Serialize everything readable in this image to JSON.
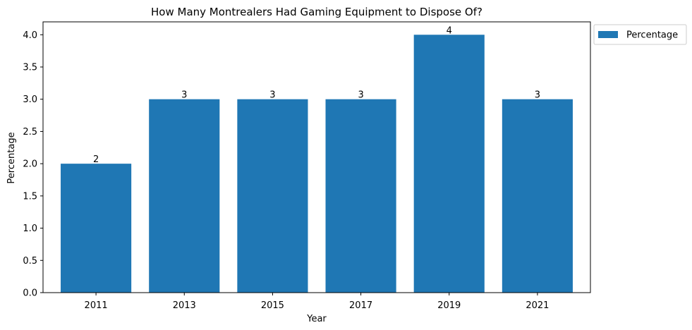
{
  "chart_data": {
    "type": "bar",
    "title": "How Many Montrealers Had Gaming Equipment to Dispose Of?",
    "xlabel": "Year",
    "ylabel": "Percentage",
    "categories": [
      "2011",
      "2013",
      "2015",
      "2017",
      "2019",
      "2021"
    ],
    "series": [
      {
        "name": "Percentage",
        "values": [
          2,
          3,
          3,
          3,
          4,
          3
        ]
      }
    ],
    "data_labels": [
      "2",
      "3",
      "3",
      "3",
      "4",
      "3"
    ],
    "ylim": [
      0,
      4.2
    ],
    "yticks": [
      "0.0",
      "0.5",
      "1.0",
      "1.5",
      "2.0",
      "2.5",
      "3.0",
      "3.5",
      "4.0"
    ],
    "legend_position": "outside top-right",
    "grid": false,
    "colors": {
      "bar": "#1f77b4",
      "axis": "#000000"
    }
  }
}
